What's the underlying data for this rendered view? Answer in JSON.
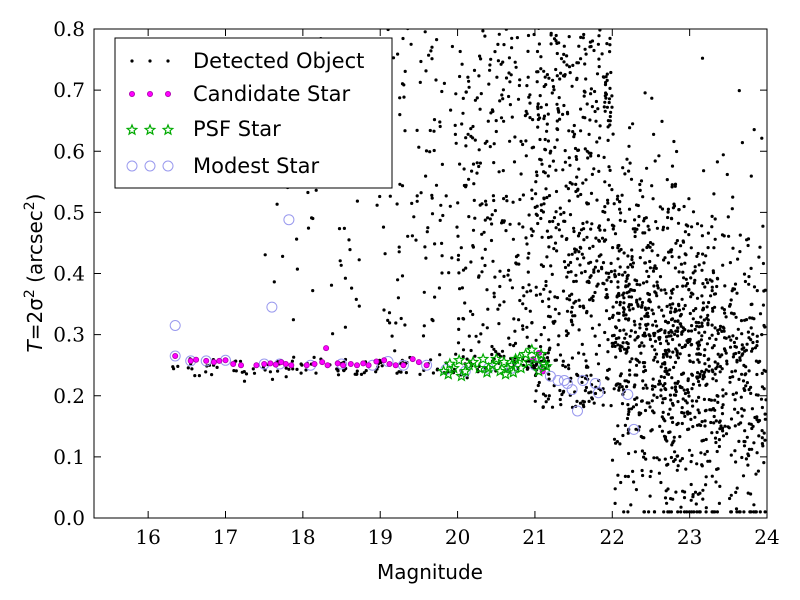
{
  "chart_data": {
    "type": "scatter",
    "xlabel": "Magnitude",
    "ylabel_prefix": "T",
    "ylabel_formula": "=2σ",
    "ylabel_exp": "2",
    "ylabel_unit": " (arcsec",
    "ylabel_unit_exp": "2",
    "ylabel_close": ")",
    "xlim": [
      15.3,
      24
    ],
    "ylim": [
      0.0,
      0.8
    ],
    "xticks": [
      "16",
      "17",
      "18",
      "19",
      "20",
      "21",
      "22",
      "23",
      "24"
    ],
    "yticks": [
      "0.0",
      "0.1",
      "0.2",
      "0.3",
      "0.4",
      "0.5",
      "0.6",
      "0.7",
      "0.8"
    ],
    "grid": false,
    "legend_position": "top-left",
    "legend": [
      {
        "label": "Detected Object",
        "marker": "dot"
      },
      {
        "label": "Candidate Star",
        "marker": "magenta-dot"
      },
      {
        "label": "PSF Star",
        "marker": "green-star"
      },
      {
        "label": "Modest Star",
        "marker": "open-circle"
      }
    ],
    "colors": {
      "detected": "#000000",
      "candidate": "#ff00ff",
      "psf": "#00aa00",
      "modest": "#9999ee"
    },
    "series": [
      {
        "name": "Candidate Star",
        "points": [
          [
            16.35,
            0.265
          ],
          [
            16.55,
            0.257
          ],
          [
            16.62,
            0.259
          ],
          [
            16.75,
            0.257
          ],
          [
            16.85,
            0.255
          ],
          [
            16.92,
            0.257
          ],
          [
            17.0,
            0.258
          ],
          [
            17.1,
            0.252
          ],
          [
            17.2,
            0.25
          ],
          [
            17.4,
            0.25
          ],
          [
            17.5,
            0.252
          ],
          [
            17.58,
            0.253
          ],
          [
            17.65,
            0.251
          ],
          [
            17.72,
            0.255
          ],
          [
            17.78,
            0.252
          ],
          [
            17.85,
            0.25
          ],
          [
            18.05,
            0.25
          ],
          [
            18.15,
            0.252
          ],
          [
            18.25,
            0.255
          ],
          [
            18.32,
            0.25
          ],
          [
            18.45,
            0.253
          ],
          [
            18.52,
            0.25
          ],
          [
            18.62,
            0.252
          ],
          [
            18.7,
            0.25
          ],
          [
            18.78,
            0.253
          ],
          [
            18.85,
            0.25
          ],
          [
            18.95,
            0.256
          ],
          [
            19.05,
            0.258
          ],
          [
            19.12,
            0.252
          ],
          [
            19.2,
            0.25
          ],
          [
            19.3,
            0.25
          ],
          [
            19.42,
            0.26
          ],
          [
            19.5,
            0.255
          ],
          [
            19.6,
            0.25
          ],
          [
            18.3,
            0.278
          ],
          [
            20.98,
            0.26
          ],
          [
            21.1,
            0.24
          ],
          [
            21.05,
            0.27
          ]
        ]
      },
      {
        "name": "PSF Star",
        "points": [
          [
            19.82,
            0.24
          ],
          [
            19.9,
            0.252
          ],
          [
            19.95,
            0.245
          ],
          [
            20.02,
            0.258
          ],
          [
            20.1,
            0.24
          ],
          [
            20.15,
            0.25
          ],
          [
            20.2,
            0.255
          ],
          [
            20.28,
            0.245
          ],
          [
            20.33,
            0.26
          ],
          [
            20.4,
            0.245
          ],
          [
            20.45,
            0.25
          ],
          [
            20.5,
            0.26
          ],
          [
            20.55,
            0.24
          ],
          [
            20.6,
            0.255
          ],
          [
            20.65,
            0.245
          ],
          [
            20.7,
            0.25
          ],
          [
            20.75,
            0.26
          ],
          [
            20.82,
            0.245
          ],
          [
            20.88,
            0.268
          ],
          [
            20.92,
            0.255
          ],
          [
            20.96,
            0.275
          ],
          [
            21.02,
            0.26
          ],
          [
            21.05,
            0.24
          ],
          [
            21.12,
            0.252
          ],
          [
            21.15,
            0.248
          ],
          [
            19.88,
            0.235
          ],
          [
            20.05,
            0.232
          ],
          [
            20.38,
            0.238
          ],
          [
            20.62,
            0.235
          ],
          [
            20.8,
            0.262
          ],
          [
            20.72,
            0.238
          ],
          [
            21.08,
            0.268
          ]
        ]
      },
      {
        "name": "Modest Star",
        "points": [
          [
            16.35,
            0.315
          ],
          [
            16.35,
            0.265
          ],
          [
            17.6,
            0.345
          ],
          [
            17.82,
            0.488
          ],
          [
            21.2,
            0.232
          ],
          [
            21.3,
            0.225
          ],
          [
            21.38,
            0.225
          ],
          [
            21.42,
            0.22
          ],
          [
            21.48,
            0.21
          ],
          [
            21.55,
            0.175
          ],
          [
            21.62,
            0.225
          ],
          [
            21.78,
            0.22
          ],
          [
            21.82,
            0.205
          ],
          [
            22.2,
            0.202
          ],
          [
            22.28,
            0.145
          ],
          [
            16.55,
            0.257
          ],
          [
            16.75,
            0.257
          ],
          [
            17.0,
            0.258
          ],
          [
            17.5,
            0.252
          ],
          [
            17.7,
            0.252
          ],
          [
            18.1,
            0.25
          ],
          [
            18.5,
            0.252
          ],
          [
            18.9,
            0.25
          ],
          [
            19.1,
            0.256
          ],
          [
            19.3,
            0.25
          ],
          [
            19.6,
            0.25
          ],
          [
            19.85,
            0.243
          ],
          [
            20.1,
            0.24
          ],
          [
            20.4,
            0.245
          ],
          [
            20.7,
            0.245
          ],
          [
            21.0,
            0.25
          ]
        ]
      }
    ]
  }
}
